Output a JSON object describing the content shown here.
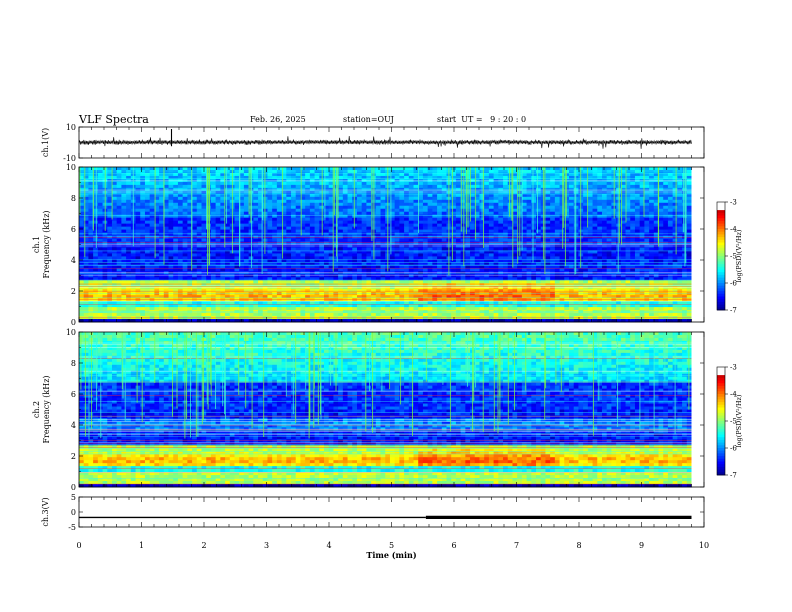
{
  "header": {
    "title": "VLF Spectra",
    "date": "Feb. 26, 2025",
    "station": "station=OUJ",
    "start": "start  UT =   9 : 20 : 0"
  },
  "chart_data": {
    "type": "heatmap",
    "panels": [
      {
        "name": "ch1-waveform",
        "type": "line",
        "ylabel": "ch.1(V)",
        "ylim": [
          -10,
          10
        ],
        "yticks": [
          "10",
          "-10"
        ],
        "baseline": 0.5
      },
      {
        "name": "ch1-spectrogram",
        "type": "heatmap",
        "ylabel": "ch.1\nFrequency  (kHz)",
        "ylim": [
          0,
          10
        ],
        "yticks": [
          "0",
          "2",
          "4",
          "6",
          "8",
          "10"
        ],
        "colorbar": {
          "label": "log(PSD)(V²/Hz)",
          "range": [
            -7,
            -3
          ],
          "ticks": [
            "-3",
            "-4",
            "-5",
            "-6",
            "-7"
          ]
        }
      },
      {
        "name": "ch2-spectrogram",
        "type": "heatmap",
        "ylabel": "ch.2\nFrequency  (kHz)",
        "ylim": [
          0,
          10
        ],
        "yticks": [
          "0",
          "2",
          "4",
          "6",
          "8",
          "10"
        ],
        "colorbar": {
          "label": "log(PSD)(V²/Hz)",
          "range": [
            -7,
            -3
          ],
          "ticks": [
            "-3",
            "-4",
            "-5",
            "-6",
            "-7"
          ]
        }
      },
      {
        "name": "ch3-waveform",
        "type": "line",
        "ylabel": "ch.3(V)",
        "ylim": [
          -5,
          5
        ],
        "yticks": [
          "5",
          "0",
          "-5"
        ],
        "segments": [
          {
            "x": [
              0,
              5.55
            ],
            "y": -1.8
          },
          {
            "x": [
              5.55,
              9.8
            ],
            "y": -1.8,
            "thick": true
          }
        ]
      }
    ],
    "xlabel": "Time  (min)",
    "xlim": [
      0,
      10
    ],
    "xticks": [
      "0",
      "1",
      "2",
      "3",
      "4",
      "5",
      "6",
      "7",
      "8",
      "9",
      "10"
    ],
    "data_end_min": 9.8,
    "colors": {
      "low": "#00007f",
      "mid": "#00ff66",
      "high": "#ff0000",
      "top": "#ffffff"
    }
  }
}
